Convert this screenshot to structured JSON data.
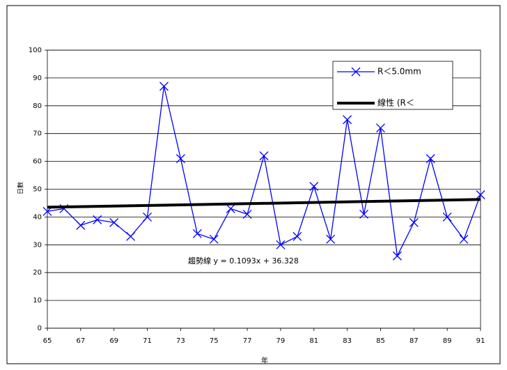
{
  "chart_data": {
    "type": "line",
    "x_label": "年",
    "y_label": "日數",
    "x": [
      65,
      66,
      67,
      68,
      69,
      70,
      71,
      72,
      73,
      74,
      75,
      76,
      77,
      78,
      79,
      80,
      81,
      82,
      83,
      84,
      85,
      86,
      87,
      88,
      89,
      90,
      91
    ],
    "xlim": [
      65,
      91
    ],
    "xticks": [
      65,
      67,
      69,
      71,
      73,
      75,
      77,
      79,
      81,
      83,
      85,
      87,
      89,
      91
    ],
    "ylim": [
      0,
      100
    ],
    "yticks": [
      0,
      10,
      20,
      30,
      40,
      50,
      60,
      70,
      80,
      90,
      100
    ],
    "grid": true,
    "series": [
      {
        "name": "R＜5.0mm",
        "color": "#0000ff",
        "marker": "x",
        "values": [
          42,
          43,
          37,
          39,
          38,
          33,
          40,
          87,
          61,
          34,
          32,
          43,
          41,
          62,
          30,
          33,
          51,
          32,
          75,
          41,
          72,
          26,
          38,
          61,
          40,
          32,
          48
        ]
      },
      {
        "name": "線性 (R＜",
        "color": "#000000",
        "x": [
          65,
          91
        ],
        "values": [
          43.5,
          46.3
        ]
      }
    ],
    "annotation": "趨勢線 y = 0.1093x + 36.328",
    "legend": "top-right"
  }
}
